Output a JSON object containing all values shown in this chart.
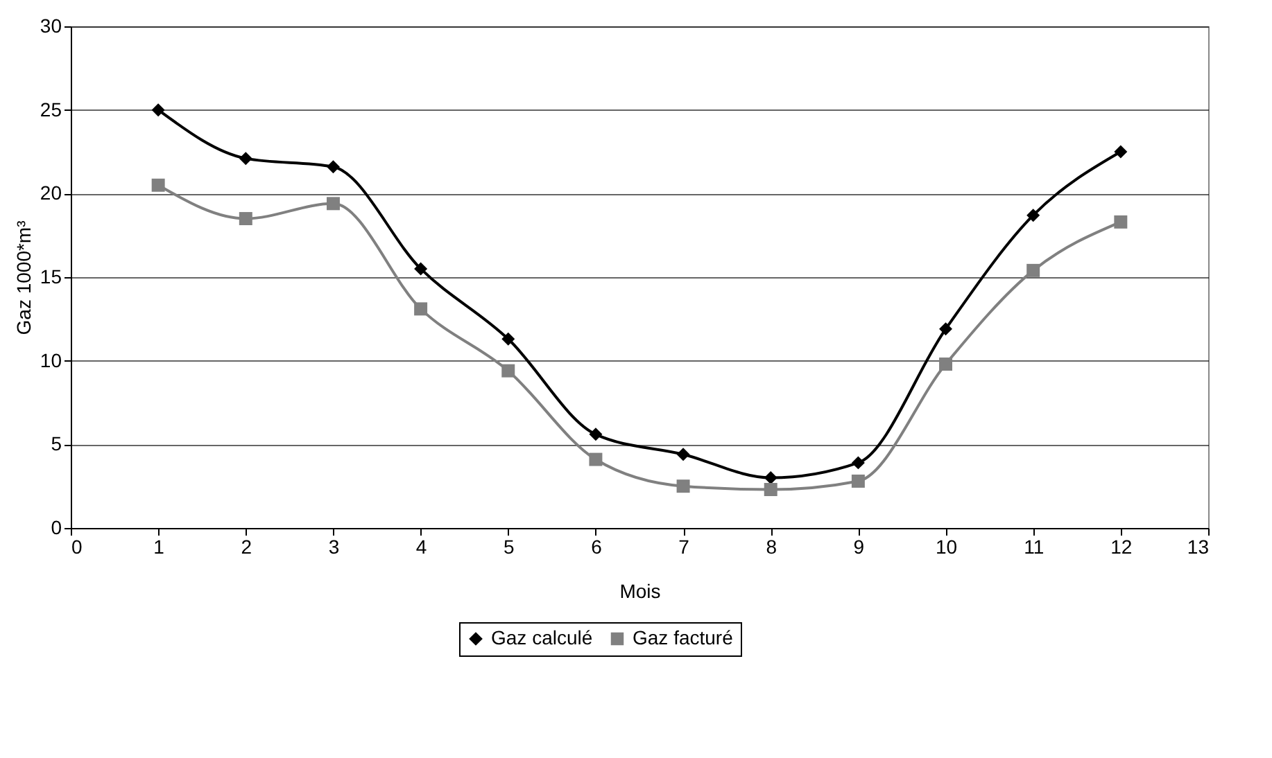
{
  "chart_data": {
    "type": "line",
    "xlabel": "Mois",
    "ylabel": "Gaz 1000*m³",
    "x": [
      1,
      2,
      3,
      4,
      5,
      6,
      7,
      8,
      9,
      10,
      11,
      12
    ],
    "series": [
      {
        "name": "Gaz calculé",
        "color": "#000000",
        "marker": "diamond",
        "values": [
          25.0,
          22.1,
          21.6,
          15.5,
          11.3,
          5.6,
          4.4,
          3.0,
          3.9,
          11.9,
          18.7,
          22.5
        ]
      },
      {
        "name": "Gaz facturé",
        "color": "#808080",
        "marker": "square",
        "values": [
          20.5,
          18.5,
          19.4,
          13.1,
          9.4,
          4.1,
          2.5,
          2.3,
          2.8,
          9.8,
          15.4,
          18.3
        ]
      }
    ],
    "xlim": [
      0,
      13
    ],
    "xticks": [
      0,
      1,
      2,
      3,
      4,
      5,
      6,
      7,
      8,
      9,
      10,
      11,
      12,
      13
    ],
    "ylim": [
      0,
      30
    ],
    "yticks": [
      0,
      5,
      10,
      15,
      20,
      25,
      30
    ],
    "grid": "y",
    "legend": "bottom",
    "line_style": "solid"
  }
}
